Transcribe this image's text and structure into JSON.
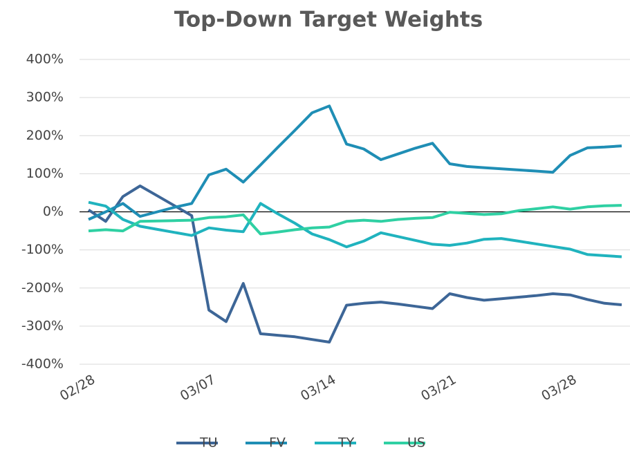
{
  "chart_data": {
    "type": "line",
    "title": "Top-Down Target Weights",
    "categories": [
      "02/28",
      null,
      null,
      null,
      null,
      null,
      null,
      "03/07",
      null,
      null,
      null,
      null,
      null,
      null,
      "03/14",
      null,
      null,
      null,
      null,
      null,
      null,
      "03/21",
      null,
      null,
      null,
      null,
      null,
      null,
      "03/28",
      null,
      null,
      null
    ],
    "series": [
      {
        "name": "TU",
        "color": "#3d6697",
        "values": [
          5,
          -25,
          40,
          68,
          42,
          16,
          -10,
          -258,
          -288,
          -188,
          -320,
          -324,
          -328,
          -335,
          -342,
          -245,
          -240,
          -237,
          -242,
          -248,
          -254,
          -215,
          -225,
          -232,
          -228,
          -224,
          -220,
          -215,
          -218,
          -230,
          -240,
          -244
        ]
      },
      {
        "name": "FV",
        "color": "#1f8eb5",
        "values": [
          -20,
          0,
          22,
          -12,
          0,
          12,
          22,
          97,
          112,
          78,
          123,
          169,
          214,
          260,
          278,
          178,
          165,
          137,
          152,
          167,
          180,
          126,
          119,
          116,
          113,
          110,
          107,
          104,
          148,
          168,
          170,
          173
        ]
      },
      {
        "name": "TY",
        "color": "#20b3be",
        "values": [
          25,
          15,
          -20,
          -38,
          -46,
          -54,
          -62,
          -42,
          -48,
          -52,
          22,
          -5,
          -30,
          -58,
          -73,
          -92,
          -77,
          -55,
          -65,
          -75,
          -85,
          -88,
          -82,
          -72,
          -70,
          -77,
          -84,
          -91,
          -98,
          -112,
          -115,
          -118
        ]
      },
      {
        "name": "US",
        "color": "#2fd0a3",
        "values": [
          -50,
          -47,
          -50,
          -25,
          -24,
          -23,
          -22,
          -15,
          -13,
          -8,
          -58,
          -53,
          -47,
          -42,
          -40,
          -25,
          -22,
          -25,
          -20,
          -17,
          -15,
          -1,
          -4,
          -7,
          -5,
          3,
          8,
          13,
          7,
          13,
          16,
          17
        ]
      }
    ],
    "ylim": [
      -400,
      400
    ],
    "yticks": [
      {
        "value": -400,
        "label": "-400%"
      },
      {
        "value": -300,
        "label": "-300%"
      },
      {
        "value": -200,
        "label": "-200%"
      },
      {
        "value": -100,
        "label": "-100%"
      },
      {
        "value": 0,
        "label": "0%"
      },
      {
        "value": 100,
        "label": "100%"
      },
      {
        "value": 200,
        "label": "200%"
      },
      {
        "value": 300,
        "label": "300%"
      },
      {
        "value": 400,
        "label": "400%"
      }
    ],
    "grid": true,
    "legend": "bottom"
  }
}
